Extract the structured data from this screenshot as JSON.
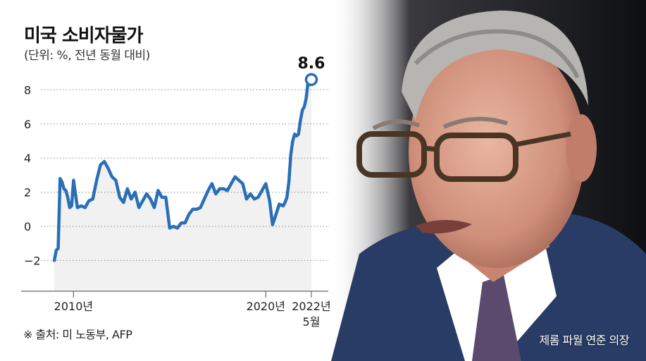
{
  "header": {
    "title": "미국 소비자물가",
    "subtitle": "(단위: %, 전년 동월 대비)"
  },
  "footer": {
    "source": "※ 출처: 미 노동부, AFP",
    "photo_caption": "제롬 파월 연준 의장"
  },
  "colors": {
    "line": "#2a6fb6",
    "area": "#f1f1f1",
    "grid": "#8a8a8a",
    "text": "#222222",
    "photo_bg": "#15161b",
    "suit": "#283c66"
  },
  "chart_data": {
    "type": "line",
    "title": "미국 소비자물가",
    "subtitle": "(단위: %, 전년 동월 대비)",
    "ylabel": "",
    "xlabel": "",
    "ylim": [
      -3.8,
      8.8
    ],
    "y_ticks": [
      -2,
      0,
      2,
      4,
      6,
      8
    ],
    "y_tick_labels": [
      "−2",
      "0",
      "2",
      "4",
      "6",
      "8"
    ],
    "x_ticks": [
      {
        "x": 2010,
        "label": "2010년"
      },
      {
        "x": 2020,
        "label": "2020년"
      },
      {
        "x": 2022.37,
        "label": "2022년"
      }
    ],
    "last_point_sublabel": "5월",
    "annotation": "8.6",
    "grid": true,
    "series": [
      {
        "x": [
          2009.0,
          2009.1,
          2009.2,
          2009.3,
          2009.4,
          2009.5,
          2009.6,
          2009.7,
          2009.8,
          2009.9,
          2010.0,
          2010.2,
          2010.4,
          2010.6,
          2010.8,
          2011.0,
          2011.2,
          2011.4,
          2011.6,
          2011.8,
          2012.0,
          2012.2,
          2012.4,
          2012.6,
          2012.8,
          2013.0,
          2013.2,
          2013.4,
          2013.6,
          2013.8,
          2014.0,
          2014.2,
          2014.4,
          2014.6,
          2014.8,
          2015.0,
          2015.2,
          2015.4,
          2015.6,
          2015.8,
          2016.0,
          2016.2,
          2016.4,
          2016.6,
          2016.8,
          2017.0,
          2017.2,
          2017.4,
          2017.6,
          2017.8,
          2018.0,
          2018.2,
          2018.4,
          2018.6,
          2018.8,
          2019.0,
          2019.2,
          2019.4,
          2019.6,
          2019.8,
          2020.0,
          2020.2,
          2020.35,
          2020.5,
          2020.7,
          2020.9,
          2021.0,
          2021.1,
          2021.2,
          2021.3,
          2021.4,
          2021.5,
          2021.6,
          2021.7,
          2021.8,
          2021.9,
          2022.0,
          2022.1,
          2022.2,
          2022.3,
          2022.37
        ],
        "values": [
          -2.0,
          -1.4,
          -1.3,
          2.8,
          2.6,
          2.2,
          2.1,
          1.7,
          1.1,
          1.2,
          2.7,
          1.1,
          1.2,
          1.1,
          1.5,
          1.6,
          2.7,
          3.6,
          3.8,
          3.4,
          2.9,
          2.7,
          1.7,
          1.4,
          2.2,
          1.6,
          2.0,
          1.1,
          1.5,
          1.9,
          1.6,
          1.1,
          2.1,
          1.7,
          1.7,
          -0.1,
          0.0,
          -0.1,
          0.2,
          0.2,
          0.7,
          1.0,
          1.0,
          1.1,
          1.6,
          2.1,
          2.5,
          1.9,
          2.2,
          2.2,
          2.1,
          2.5,
          2.9,
          2.7,
          2.5,
          1.6,
          1.9,
          1.6,
          1.7,
          2.1,
          2.5,
          1.5,
          0.1,
          0.6,
          1.3,
          1.2,
          1.4,
          1.7,
          2.6,
          4.2,
          5.0,
          5.4,
          5.3,
          5.4,
          6.2,
          6.8,
          7.0,
          7.5,
          8.5,
          8.3,
          8.6
        ]
      }
    ]
  }
}
